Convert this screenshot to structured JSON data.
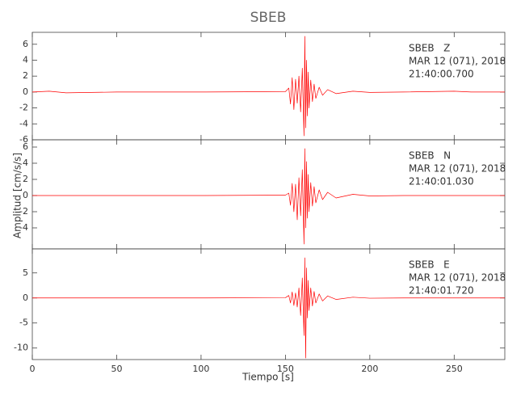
{
  "title": "SBEB",
  "xlabel": "Tiempo [s]",
  "ylabel": "Amplitud [cm/s/s]",
  "chart_data": [
    {
      "type": "line",
      "annotations": [
        "SBEB   Z",
        "MAR 12 (071), 2018",
        "21:40:00.700"
      ],
      "x": [
        0,
        10,
        20,
        50,
        100,
        150,
        152,
        153,
        154,
        155,
        156,
        157,
        158,
        159,
        160,
        161,
        161.5,
        162,
        162.5,
        163,
        163.5,
        164,
        165,
        166,
        167,
        168,
        170,
        172,
        175,
        180,
        190,
        200,
        220,
        250,
        260,
        280
      ],
      "series": [
        {
          "name": "SBEB Z",
          "color": "#ff0000",
          "values": [
            0,
            0.1,
            -0.1,
            0,
            0,
            0.05,
            0.5,
            -1.5,
            1.8,
            -2.2,
            1.6,
            -1.4,
            2.0,
            -2.5,
            3.0,
            -5.5,
            7.0,
            -4.5,
            4.0,
            -3.0,
            2.5,
            -2.0,
            1.5,
            -1.2,
            1.0,
            -0.8,
            0.6,
            -0.4,
            0.3,
            -0.2,
            0.1,
            -0.05,
            0,
            0.1,
            0,
            0
          ]
        }
      ],
      "xlim": [
        0,
        280
      ],
      "xticks": [
        0,
        50,
        100,
        150,
        200,
        250
      ],
      "ylim": [
        -6,
        7.5
      ],
      "yticks": [
        -6,
        -4,
        -2,
        0,
        2,
        4,
        6
      ]
    },
    {
      "type": "line",
      "annotations": [
        "SBEB   N",
        "MAR 12 (071), 2018",
        "21:40:01.030"
      ],
      "x": [
        0,
        10,
        20,
        50,
        100,
        150,
        152,
        153,
        154,
        155,
        156,
        157,
        158,
        159,
        160,
        161,
        161.5,
        162,
        162.5,
        163,
        163.5,
        164,
        165,
        166,
        167,
        168,
        170,
        172,
        175,
        180,
        190,
        200,
        220,
        250,
        260,
        280
      ],
      "series": [
        {
          "name": "SBEB N",
          "color": "#ff0000",
          "values": [
            0,
            0,
            0,
            0,
            0,
            0.05,
            0.3,
            -1.2,
            1.5,
            -2.0,
            1.4,
            -3.0,
            2.2,
            -2.5,
            3.2,
            -6.0,
            5.8,
            -4.0,
            4.2,
            -2.8,
            2.6,
            -2.0,
            1.6,
            -1.3,
            1.1,
            -0.9,
            0.7,
            -0.5,
            0.4,
            -0.3,
            0.15,
            -0.05,
            0,
            0,
            0,
            0
          ]
        }
      ],
      "xlim": [
        0,
        280
      ],
      "xticks": [
        0,
        50,
        100,
        150,
        200,
        250
      ],
      "ylim": [
        -6.6,
        6.9
      ],
      "yticks": [
        -4,
        -2,
        0,
        2,
        4,
        6
      ]
    },
    {
      "type": "line",
      "annotations": [
        "SBEB   E",
        "MAR 12 (071), 2018",
        "21:40:01.720"
      ],
      "x": [
        0,
        10,
        20,
        50,
        100,
        150,
        152,
        153,
        154,
        155,
        156,
        157,
        158,
        159,
        160,
        161,
        161.5,
        162,
        162.5,
        163,
        163.5,
        164,
        165,
        166,
        167,
        168,
        170,
        172,
        175,
        180,
        190,
        200,
        220,
        250,
        260,
        280
      ],
      "series": [
        {
          "name": "SBEB E",
          "color": "#ff0000",
          "values": [
            0,
            0,
            0,
            0,
            0,
            0.05,
            0.5,
            -1.0,
            1.2,
            -1.5,
            1.0,
            -1.8,
            2.0,
            -3.5,
            4.0,
            -7.5,
            8.0,
            -12.0,
            6.0,
            -4.0,
            3.5,
            -2.5,
            2.0,
            -1.6,
            1.3,
            -1.0,
            0.8,
            -0.6,
            0.4,
            -0.3,
            0.15,
            -0.05,
            0,
            0,
            0,
            0
          ]
        }
      ],
      "xlim": [
        0,
        280
      ],
      "xticks": [
        0,
        50,
        100,
        150,
        200,
        250
      ],
      "ylim": [
        -12.3,
        9.8
      ],
      "yticks": [
        -10,
        -5,
        0,
        5
      ]
    }
  ]
}
